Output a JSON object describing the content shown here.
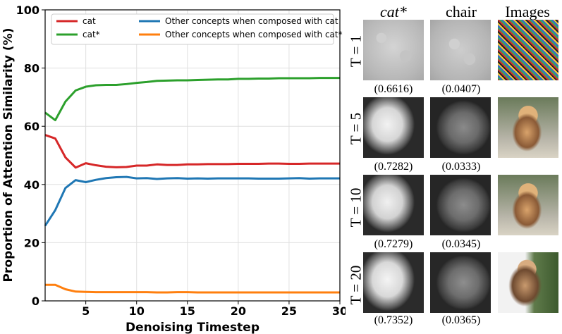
{
  "chart_data": {
    "type": "line",
    "xlabel": "Denoising Timestep",
    "ylabel": "Proportion of Attention Similarity (%)",
    "xlim": [
      1,
      30
    ],
    "ylim": [
      0,
      100
    ],
    "xticks": [
      5,
      10,
      15,
      20,
      25,
      30
    ],
    "yticks": [
      0,
      20,
      40,
      60,
      80,
      100
    ],
    "grid": true,
    "legend_position": "top",
    "x": [
      1,
      2,
      3,
      4,
      5,
      6,
      7,
      8,
      9,
      10,
      11,
      12,
      13,
      14,
      15,
      16,
      17,
      18,
      19,
      20,
      21,
      22,
      23,
      24,
      25,
      26,
      27,
      28,
      29,
      30
    ],
    "series": [
      {
        "name": "cat",
        "color": "#d62728",
        "values": [
          57,
          55.8,
          49.3,
          45.8,
          47.3,
          46.6,
          46.1,
          45.9,
          46,
          46.5,
          46.5,
          46.9,
          46.7,
          46.7,
          46.9,
          46.9,
          47,
          47,
          47,
          47.1,
          47.1,
          47.1,
          47.2,
          47.2,
          47.1,
          47.1,
          47.2,
          47.2,
          47.2,
          47.2
        ]
      },
      {
        "name": "cat*",
        "color": "#2ca02c",
        "values": [
          64.7,
          62.1,
          68.5,
          72.3,
          73.6,
          74.1,
          74.2,
          74.2,
          74.5,
          74.9,
          75.2,
          75.6,
          75.7,
          75.8,
          75.8,
          75.9,
          76,
          76.1,
          76.1,
          76.3,
          76.3,
          76.4,
          76.4,
          76.5,
          76.5,
          76.5,
          76.5,
          76.6,
          76.6,
          76.6
        ]
      },
      {
        "name": "Other concepts when composed with cat",
        "color": "#1f77b4",
        "values": [
          25.8,
          31.2,
          38.8,
          41.5,
          40.8,
          41.6,
          42.2,
          42.5,
          42.6,
          42.1,
          42.2,
          41.9,
          42.1,
          42.2,
          42,
          42.1,
          42,
          42.1,
          42.1,
          42.1,
          42.1,
          42,
          42,
          42,
          42.1,
          42.2,
          42,
          42.1,
          42.1,
          42.1
        ]
      },
      {
        "name": "Other concepts when composed with cat*",
        "color": "#ff7f0e",
        "values": [
          5.5,
          5.5,
          4,
          3.2,
          3.1,
          3,
          3,
          3,
          3,
          3,
          3,
          2.9,
          2.9,
          3,
          3,
          2.9,
          2.9,
          2.9,
          2.9,
          2.9,
          2.9,
          2.9,
          2.9,
          2.9,
          2.9,
          2.9,
          2.9,
          2.9,
          2.9,
          2.9
        ]
      }
    ]
  },
  "figure_panel": {
    "columns": [
      "cat*",
      "chair",
      "Images"
    ],
    "rows": [
      {
        "label": "T = 1",
        "scores": [
          "(0.6616)",
          "(0.0407)"
        ]
      },
      {
        "label": "T = 5",
        "scores": [
          "(0.7282)",
          "(0.0333)"
        ]
      },
      {
        "label": "T = 10",
        "scores": [
          "(0.7279)",
          "(0.0345)"
        ]
      },
      {
        "label": "T = 20",
        "scores": [
          "(0.7352)",
          "(0.0365)"
        ]
      }
    ]
  }
}
